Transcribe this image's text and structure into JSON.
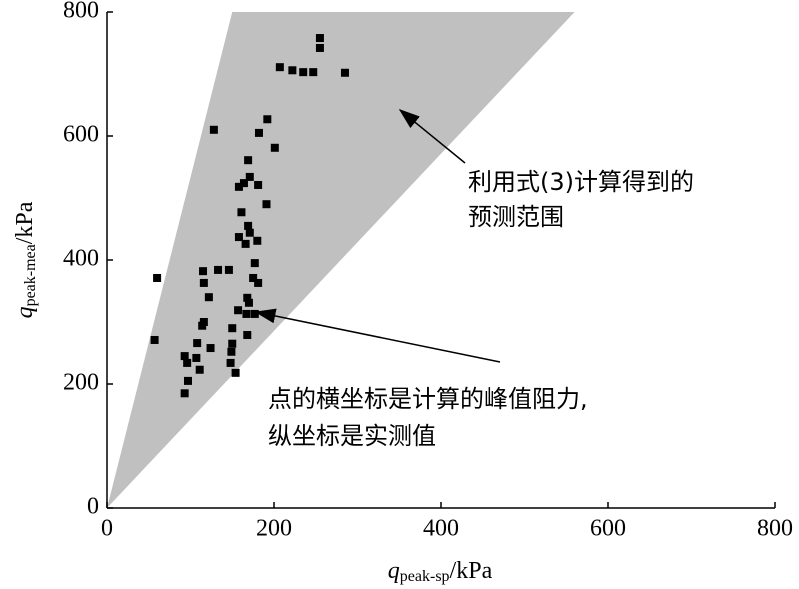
{
  "chart_data": {
    "type": "scatter",
    "x_label": {
      "symbol": "q",
      "sub": "peak-sp",
      "unit": "/kPa"
    },
    "y_label": {
      "symbol": "q",
      "sub": "peak-mea",
      "unit": "/kPa"
    },
    "xlim": [
      0,
      800
    ],
    "ylim": [
      0,
      800
    ],
    "xticks": [
      0,
      200,
      400,
      600,
      800
    ],
    "yticks": [
      0,
      200,
      400,
      600,
      800
    ],
    "region": {
      "x": [
        0,
        150,
        560
      ],
      "y": [
        0,
        800,
        800
      ],
      "color": "#c0c0c0"
    },
    "series": [
      {
        "color": "#000000",
        "x": [
          255,
          255,
          207,
          222,
          235,
          247,
          285,
          128,
          192,
          182,
          201,
          169,
          171,
          164,
          181,
          158,
          191,
          161,
          169,
          171,
          158,
          180,
          166,
          177,
          175,
          181,
          60,
          115,
          133,
          146,
          116,
          168,
          170,
          122,
          157,
          167,
          177,
          116,
          114,
          150,
          168,
          108,
          124,
          150,
          57,
          149,
          93,
          107,
          96,
          148,
          111,
          97,
          154,
          93
        ],
        "y": [
          758,
          742,
          711,
          706,
          703,
          703,
          702,
          610,
          627,
          605,
          581,
          561,
          534,
          524,
          521,
          518,
          490,
          477,
          455,
          444,
          437,
          431,
          426,
          395,
          371,
          363,
          371,
          382,
          384,
          384,
          363,
          339,
          331,
          340,
          319,
          313,
          313,
          300,
          294,
          290,
          279,
          266,
          258,
          265,
          271,
          252,
          245,
          242,
          234,
          234,
          223,
          205,
          218,
          185
        ]
      }
    ],
    "annotations": [
      {
        "lines": [
          "利用式(3)计算得到的",
          "预测范围"
        ]
      },
      {
        "lines": [
          "点的横坐标是计算的峰值阻力,",
          "纵坐标是实测值"
        ]
      }
    ]
  }
}
